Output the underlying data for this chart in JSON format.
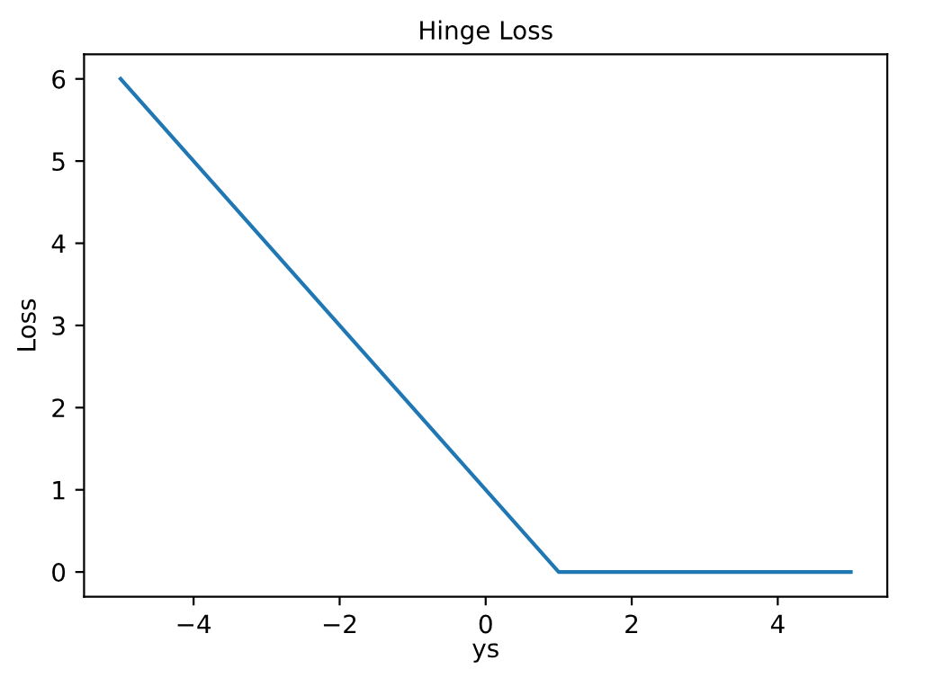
{
  "chart_data": {
    "type": "line",
    "title": "Hinge Loss",
    "xlabel": "ys",
    "ylabel": "Loss",
    "x": [
      -5,
      1,
      5
    ],
    "series": [
      {
        "color": "#1f77b4",
        "values": [
          6,
          0,
          0
        ]
      }
    ],
    "xlim": [
      -5.5,
      5.5
    ],
    "ylim": [
      -0.3,
      6.3
    ],
    "xticks": [
      {
        "value": -4,
        "label": "−4"
      },
      {
        "value": -2,
        "label": "−2"
      },
      0,
      2,
      4
    ],
    "yticks": [
      0,
      1,
      2,
      3,
      4,
      5,
      6
    ],
    "grid": false,
    "legend": false
  }
}
